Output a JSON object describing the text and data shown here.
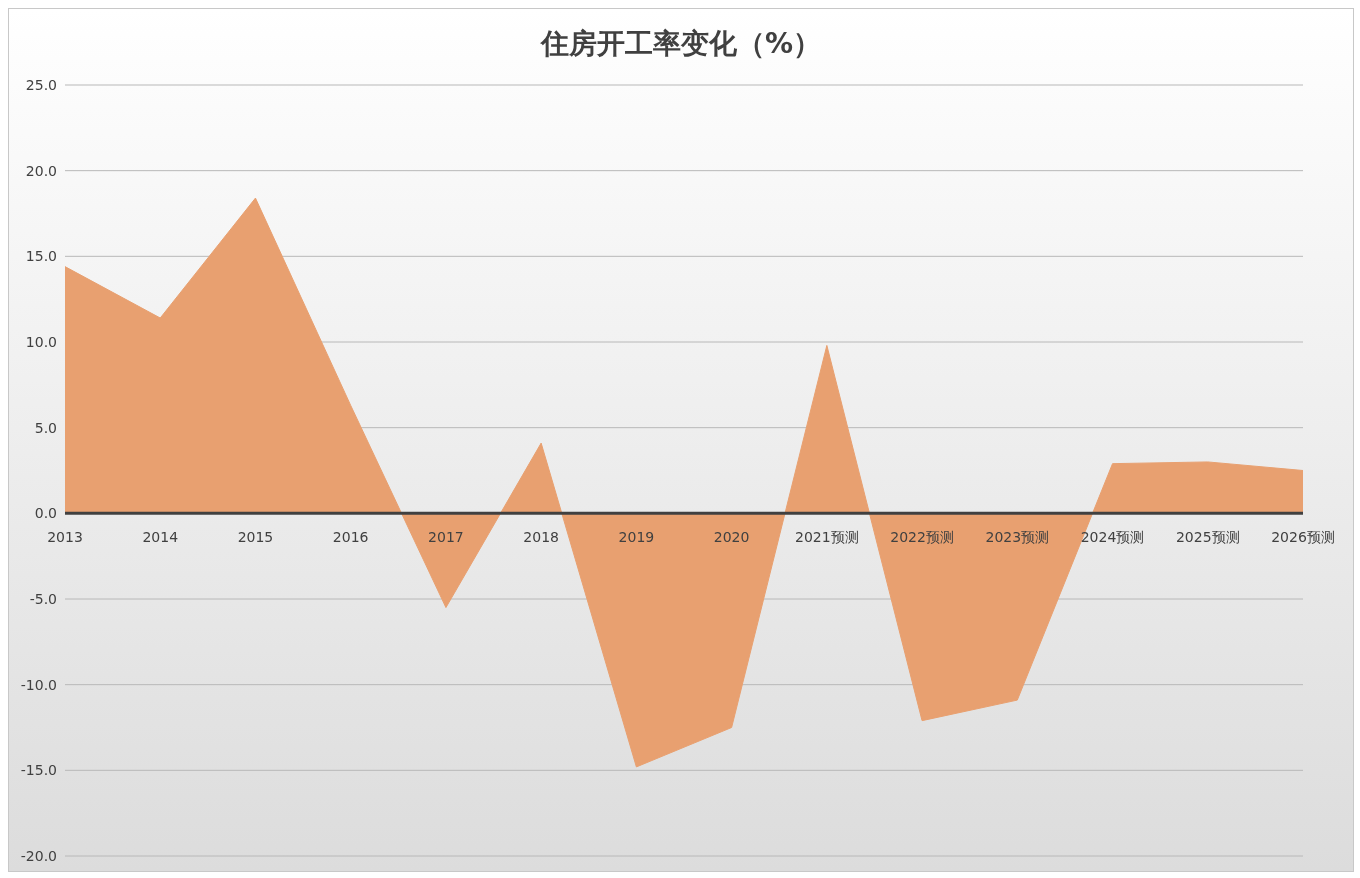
{
  "chart_data": {
    "type": "area",
    "title": "住房开工率变化（%）",
    "categories": [
      "2013",
      "2014",
      "2015",
      "2016",
      "2017",
      "2018",
      "2019",
      "2020",
      "2021预测",
      "2022预测",
      "2023预测",
      "2024预测",
      "2025预测",
      "2026预测"
    ],
    "series": [
      {
        "color": "#e8a070",
        "values": [
          14.4,
          11.4,
          18.4,
          6.3,
          -5.5,
          4.1,
          -14.8,
          -12.5,
          9.8,
          -12.1,
          -10.9,
          2.9,
          3.0,
          2.5
        ]
      }
    ],
    "ylim": [
      -20,
      25
    ],
    "yticks": [
      {
        "value": -20,
        "label": "-20.0"
      },
      {
        "value": -15,
        "label": "-15.0"
      },
      {
        "value": -10,
        "label": "-10.0"
      },
      {
        "value": -5,
        "label": "-5.0"
      },
      {
        "value": 0,
        "label": "0.0"
      },
      {
        "value": 5,
        "label": "5.0"
      },
      {
        "value": 10,
        "label": "10.0"
      },
      {
        "value": 15,
        "label": "15.0"
      },
      {
        "value": 20,
        "label": "20.0"
      },
      {
        "value": 25,
        "label": "25.0"
      }
    ],
    "grid": "y",
    "legend": false
  }
}
